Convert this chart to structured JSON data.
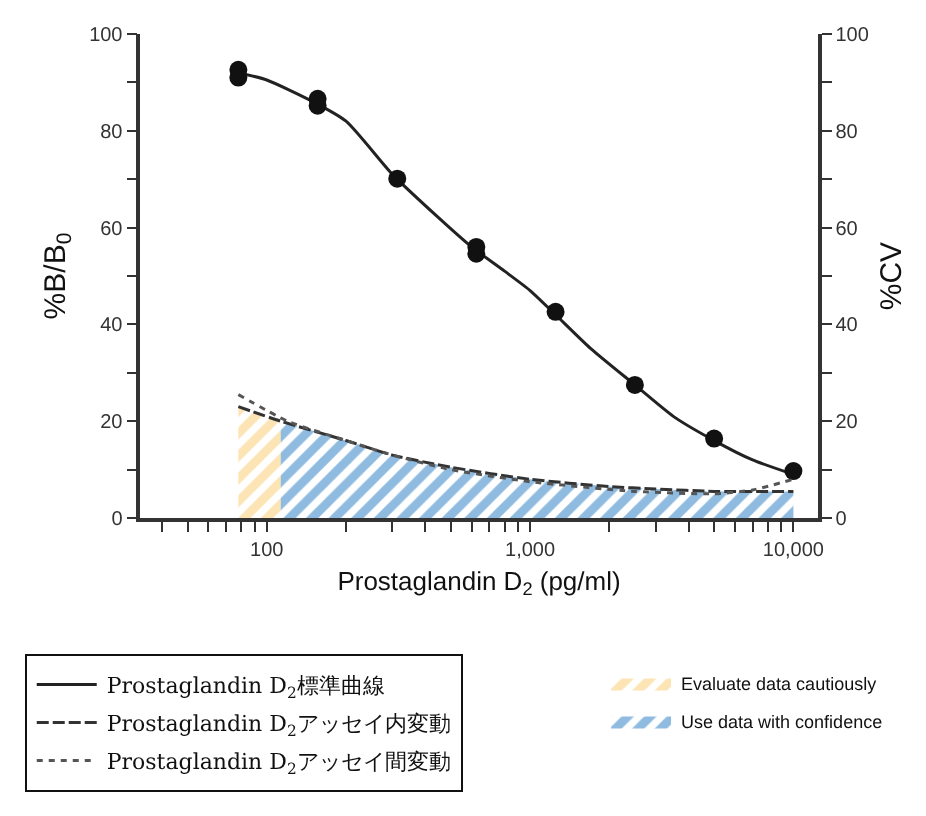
{
  "chart_data": {
    "type": "scatter",
    "xlabel": "Prostaglandin D$_{2}$ (pg/ml)",
    "ylabel": "%B/B$_{0}$",
    "y2label": "%CV",
    "log": "x",
    "legend": "bottom",
    "xlim": [
      33,
      12400
    ],
    "xticks": [
      {
        "value": 40,
        "label": null
      },
      {
        "value": 50,
        "label": null
      },
      {
        "value": 60,
        "label": null
      },
      {
        "value": 70,
        "label": null
      },
      {
        "value": 80,
        "label": null
      },
      {
        "value": 90,
        "label": null
      },
      {
        "value": 100,
        "label": "100"
      },
      {
        "value": 200,
        "label": null
      },
      {
        "value": 300,
        "label": null
      },
      {
        "value": 400,
        "label": null
      },
      {
        "value": 500,
        "label": null
      },
      {
        "value": 600,
        "label": null
      },
      {
        "value": 700,
        "label": null
      },
      {
        "value": 800,
        "label": null
      },
      {
        "value": 900,
        "label": null
      },
      {
        "value": 1000,
        "label": "1,000"
      },
      {
        "value": 2000,
        "label": null
      },
      {
        "value": 3000,
        "label": null
      },
      {
        "value": 4000,
        "label": null
      },
      {
        "value": 5000,
        "label": null
      },
      {
        "value": 6000,
        "label": null
      },
      {
        "value": 7000,
        "label": null
      },
      {
        "value": 8000,
        "label": null
      },
      {
        "value": 9000,
        "label": null
      },
      {
        "value": 10000,
        "label": "10,000"
      }
    ],
    "ylim": [
      0,
      100
    ],
    "yticks": [
      0,
      {
        "value": 10,
        "label": null
      },
      20,
      {
        "value": 30,
        "label": null
      },
      40,
      {
        "value": 50,
        "label": null
      },
      60,
      {
        "value": 70,
        "label": null
      },
      80,
      {
        "value": 90,
        "label": null
      },
      100
    ],
    "y2lim": [
      0,
      100
    ],
    "y2ticks": [
      0,
      {
        "value": 10,
        "label": null
      },
      20,
      {
        "value": 30,
        "label": null
      },
      40,
      {
        "value": 50,
        "label": null
      },
      60,
      {
        "value": 70,
        "label": null
      },
      80,
      {
        "value": 90,
        "label": null
      },
      100
    ],
    "series": [
      {
        "type": "area",
        "name": "Evaluate data cautiously",
        "color": "#f9c96a",
        "axis": "y2",
        "x": [
          78,
          113
        ],
        "values": [
          23,
          20
        ]
      },
      {
        "type": "area",
        "name": "Use data with confidence",
        "color": "#1f78c1",
        "axis": "y2",
        "x": [
          113,
          200,
          300,
          500,
          1000,
          2000,
          3000,
          5000,
          10000
        ],
        "values": [
          20,
          16,
          13,
          10.5,
          8,
          6.5,
          6,
          5.5,
          5.5
        ]
      },
      {
        "type": "line",
        "name": "Prostaglandin D$_{2}$標準曲線",
        "color": "#222222",
        "marker": "none",
        "line_style": "solid",
        "x": [
          78,
          100,
          150,
          200,
          300,
          450,
          600,
          800,
          1000,
          1250,
          1700,
          2500,
          3500,
          5000,
          7000,
          10000
        ],
        "values": [
          92,
          90.5,
          86,
          82,
          71,
          62,
          56,
          51,
          47,
          42,
          35,
          27.5,
          21,
          16,
          12,
          9
        ]
      },
      {
        "type": "line",
        "name": "Prostaglandin D$_{2}$アッセイ内変動",
        "color": "#333333",
        "marker": "none",
        "line_style": "dashed",
        "axis": "y2",
        "x": [
          78,
          113,
          200,
          300,
          500,
          1000,
          2000,
          3000,
          5000,
          10000
        ],
        "values": [
          23,
          20,
          16,
          13,
          10.5,
          8,
          6.5,
          6,
          5.5,
          5.5
        ]
      },
      {
        "type": "line",
        "name": "Prostaglandin D$_{2}$アッセイ間変動",
        "color": "#555555",
        "marker": "none",
        "line_style": "dotted",
        "axis": "y2",
        "x": [
          78,
          120,
          200,
          300,
          500,
          1000,
          2500,
          5000,
          7000,
          10000
        ],
        "values": [
          25.5,
          20,
          16,
          13,
          10,
          7.5,
          5.5,
          5,
          5.8,
          8
        ]
      },
      {
        "color": "#111111",
        "marker": "circle",
        "x": [
          78,
          78,
          156,
          156,
          313,
          625,
          625,
          1250,
          2500,
          5000,
          10000
        ],
        "values": [
          92.6,
          91,
          86.6,
          85.2,
          70.1,
          56,
          54.6,
          42.6,
          27.5,
          16.4,
          9.7
        ]
      }
    ]
  }
}
